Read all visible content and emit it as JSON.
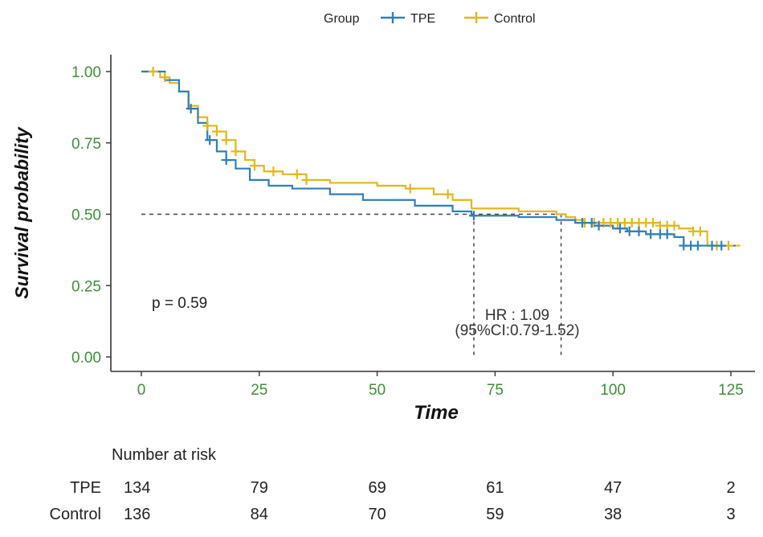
{
  "chart_data": {
    "type": "line",
    "title": "",
    "xlabel": "Time",
    "ylabel": "Survival probability",
    "xlim": [
      0,
      125
    ],
    "ylim": [
      0,
      1
    ],
    "x_ticks": [
      "0",
      "25",
      "50",
      "75",
      "100",
      "125"
    ],
    "y_ticks": [
      "0.00",
      "0.25",
      "0.50",
      "0.75",
      "1.00"
    ],
    "legend": {
      "title": "Group",
      "position": "top",
      "entries": [
        "TPE",
        "Control"
      ]
    },
    "series": [
      {
        "name": "TPE",
        "color": "#2f7fb8",
        "steps": [
          [
            0,
            1.0
          ],
          [
            3,
            1.0
          ],
          [
            5,
            0.97
          ],
          [
            8,
            0.93
          ],
          [
            10,
            0.87
          ],
          [
            12,
            0.82
          ],
          [
            14,
            0.76
          ],
          [
            16,
            0.72
          ],
          [
            18,
            0.69
          ],
          [
            20,
            0.66
          ],
          [
            23,
            0.62
          ],
          [
            27,
            0.6
          ],
          [
            32,
            0.59
          ],
          [
            40,
            0.57
          ],
          [
            47,
            0.55
          ],
          [
            58,
            0.53
          ],
          [
            66,
            0.51
          ],
          [
            70,
            0.495
          ],
          [
            80,
            0.49
          ],
          [
            88,
            0.48
          ],
          [
            92,
            0.47
          ],
          [
            96,
            0.46
          ],
          [
            100,
            0.45
          ],
          [
            103,
            0.44
          ],
          [
            107,
            0.43
          ],
          [
            113,
            0.42
          ],
          [
            115,
            0.39
          ],
          [
            126,
            0.39
          ]
        ],
        "censor_times": [
          10.5,
          14.5,
          18,
          70.5,
          93.5,
          95.5,
          97,
          101.5,
          103.5,
          105.5,
          108,
          110,
          111.5,
          115,
          116.5,
          118,
          121,
          123
        ]
      },
      {
        "name": "Control",
        "color": "#e0b81e",
        "steps": [
          [
            0,
            1.0
          ],
          [
            2,
            1.0
          ],
          [
            4,
            0.98
          ],
          [
            6,
            0.96
          ],
          [
            8,
            0.93
          ],
          [
            10,
            0.88
          ],
          [
            12,
            0.84
          ],
          [
            14,
            0.81
          ],
          [
            16,
            0.79
          ],
          [
            18,
            0.76
          ],
          [
            20,
            0.72
          ],
          [
            22,
            0.69
          ],
          [
            24,
            0.67
          ],
          [
            26,
            0.65
          ],
          [
            30,
            0.64
          ],
          [
            35,
            0.62
          ],
          [
            40,
            0.61
          ],
          [
            50,
            0.6
          ],
          [
            56,
            0.59
          ],
          [
            62,
            0.57
          ],
          [
            66,
            0.55
          ],
          [
            70,
            0.52
          ],
          [
            80,
            0.51
          ],
          [
            88,
            0.5
          ],
          [
            90,
            0.49
          ],
          [
            92,
            0.48
          ],
          [
            94,
            0.47
          ],
          [
            105,
            0.47
          ],
          [
            110,
            0.46
          ],
          [
            114,
            0.45
          ],
          [
            117,
            0.44
          ],
          [
            120,
            0.39
          ],
          [
            127,
            0.39
          ]
        ],
        "censor_times": [
          2.5,
          5,
          14,
          16,
          18,
          20,
          24,
          28,
          33,
          35,
          57,
          65,
          94,
          96,
          98,
          99.5,
          101,
          102.5,
          104,
          105.5,
          107,
          108.5,
          110,
          111.5,
          113,
          117,
          118.5,
          122,
          124.5
        ]
      }
    ],
    "median_reference": {
      "y": 0.5,
      "tpe_median_x": 70.5,
      "control_median_x": 89
    },
    "annotations": {
      "p_value": "p = 0.59",
      "hr_line1": "HR : 1.09",
      "hr_line2": "(95%CI:0.79-1.52)"
    },
    "risk_table": {
      "title": "Number at risk",
      "times": [
        0,
        25,
        50,
        75,
        100,
        125
      ],
      "rows": [
        {
          "label": "TPE",
          "color": "#2f7fb8",
          "values": [
            "134",
            "79",
            "69",
            "61",
            "47",
            "2"
          ]
        },
        {
          "label": "Control",
          "color": "#e0b81e",
          "values": [
            "136",
            "84",
            "70",
            "59",
            "38",
            "3"
          ]
        }
      ]
    },
    "tick_color": "#3f8f3a"
  }
}
